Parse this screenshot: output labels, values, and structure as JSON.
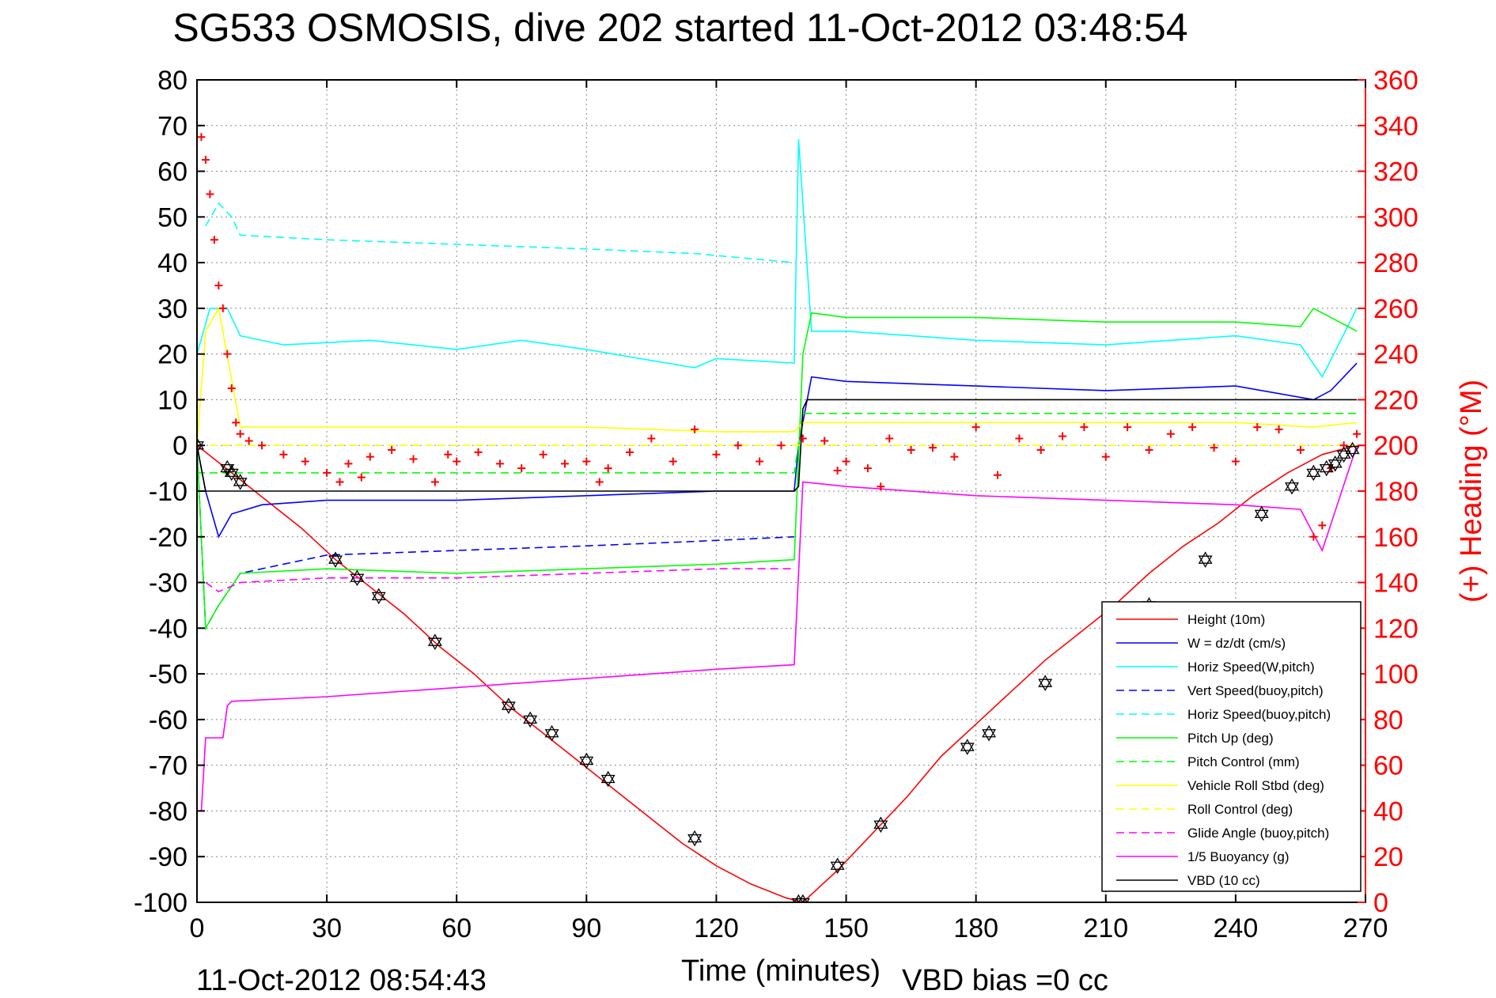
{
  "chart_data": {
    "type": "line",
    "title": "SG533 OSMOSIS, dive 202 started 11-Oct-2012 03:48:54",
    "xlabel": "Time (minutes)",
    "ylabel": "",
    "ylabel_right": "(+) Heading (°M)",
    "footer_left": "11-Oct-2012 08:54:43",
    "footer_right": "VBD bias =0 cc",
    "xlim": [
      0,
      270
    ],
    "ylim": [
      -100,
      80
    ],
    "ylim_right": [
      0,
      360
    ],
    "x_ticks": [
      0,
      30,
      60,
      90,
      120,
      150,
      180,
      210,
      240,
      270
    ],
    "y_ticks": [
      80,
      70,
      60,
      50,
      40,
      30,
      20,
      10,
      0,
      -10,
      -20,
      -30,
      -40,
      -50,
      -60,
      -70,
      -80,
      -90,
      -100
    ],
    "y_ticks_right": [
      360,
      340,
      320,
      300,
      280,
      260,
      240,
      220,
      200,
      180,
      160,
      140,
      120,
      100,
      80,
      60,
      40,
      20,
      0
    ],
    "grid": true,
    "legend_position": "bottom-right",
    "colors": {
      "right_axis": "#ff0000"
    },
    "series": [
      {
        "name": "Height (10m)",
        "color": "#ff0000",
        "style": "solid",
        "x": [
          0,
          8,
          16,
          24,
          32,
          40,
          48,
          56,
          64,
          72,
          80,
          88,
          96,
          104,
          112,
          120,
          128,
          136,
          140,
          148,
          156,
          164,
          172,
          180,
          188,
          196,
          204,
          212,
          220,
          228,
          236,
          244,
          252,
          260,
          268
        ],
        "values": [
          0,
          -6,
          -12,
          -18,
          -25,
          -31,
          -37,
          -44,
          -50,
          -57,
          -63,
          -69,
          -75,
          -81,
          -87,
          -92,
          -96,
          -99,
          -100,
          -93,
          -85,
          -77,
          -68,
          -61,
          -54,
          -47,
          -41,
          -35,
          -28,
          -22,
          -17,
          -11,
          -6,
          -2,
          0
        ]
      },
      {
        "name": "W = dz/dt (cm/s)",
        "color": "#0000ff",
        "style": "solid",
        "x": [
          0,
          2,
          5,
          8,
          15,
          30,
          60,
          90,
          120,
          138,
          139,
          142,
          150,
          180,
          210,
          240,
          258,
          262,
          268
        ],
        "values": [
          0,
          -10,
          -20,
          -15,
          -13,
          -12,
          -12,
          -11,
          -10,
          -10,
          0,
          15,
          14,
          13,
          12,
          13,
          10,
          12,
          18
        ]
      },
      {
        "name": "Horiz Speed(W,pitch)",
        "color": "#00ffff",
        "style": "solid",
        "x": [
          0,
          3,
          7,
          10,
          20,
          40,
          60,
          75,
          90,
          115,
          120,
          138,
          139,
          142,
          150,
          180,
          210,
          240,
          255,
          260,
          268
        ],
        "values": [
          20,
          30,
          30,
          24,
          22,
          23,
          21,
          23,
          21,
          17,
          19,
          18,
          67,
          25,
          25,
          23,
          22,
          24,
          22,
          15,
          30
        ]
      },
      {
        "name": "Vert Speed(buoy,pitch)",
        "color": "#0000ff",
        "style": "dashed",
        "x": [
          0,
          2,
          5,
          10,
          30,
          60,
          90,
          115,
          138
        ],
        "values": [
          0,
          -40,
          -35,
          -28,
          -24,
          -23,
          -22,
          -21,
          -20
        ]
      },
      {
        "name": "Horiz Speed(buoy,pitch)",
        "color": "#00ffff",
        "style": "dashed",
        "x": [
          2,
          5,
          8,
          10,
          30,
          60,
          90,
          115,
          138
        ],
        "values": [
          48,
          53,
          50,
          46,
          45,
          44,
          43,
          42,
          40
        ]
      },
      {
        "name": "Pitch Up (deg)",
        "color": "#00ff00",
        "style": "solid",
        "x": [
          0,
          2,
          5,
          10,
          30,
          60,
          90,
          120,
          138,
          140,
          142,
          150,
          180,
          210,
          240,
          255,
          258,
          268
        ],
        "values": [
          0,
          -40,
          -35,
          -28,
          -27,
          -28,
          -27,
          -26,
          -25,
          20,
          29,
          28,
          28,
          27,
          27,
          26,
          30,
          25
        ]
      },
      {
        "name": "Pitch Control (mm)",
        "color": "#00ff00",
        "style": "dashed",
        "x": [
          0,
          10,
          138,
          140,
          268
        ],
        "values": [
          -6,
          -6,
          -6,
          7,
          7
        ]
      },
      {
        "name": "Vehicle Roll Stbd (deg)",
        "color": "#ffff00",
        "style": "solid",
        "x": [
          0,
          2,
          5,
          10,
          30,
          60,
          90,
          120,
          138,
          140,
          150,
          180,
          210,
          240,
          258,
          268
        ],
        "values": [
          0,
          25,
          30,
          4,
          4,
          4,
          4,
          3,
          3,
          5,
          5,
          5,
          5,
          5,
          4,
          5
        ]
      },
      {
        "name": "Roll Control (deg)",
        "color": "#ffff00",
        "style": "dashed",
        "x": [
          0,
          268
        ],
        "values": [
          0,
          0
        ]
      },
      {
        "name": "Glide Angle (buoy,pitch)",
        "color": "#ff00ff",
        "style": "dashed",
        "x": [
          2,
          5,
          10,
          30,
          60,
          90,
          120,
          138
        ],
        "values": [
          -30,
          -32,
          -30,
          -29,
          -29,
          -28,
          -27,
          -27
        ]
      },
      {
        "name": "1/5 Buoyancy (g)",
        "color": "#ff00ff",
        "style": "solid",
        "x": [
          1,
          2,
          6,
          7,
          8,
          30,
          60,
          90,
          120,
          138,
          140,
          150,
          180,
          210,
          240,
          255,
          260,
          268
        ],
        "values": [
          -80,
          -64,
          -64,
          -57,
          -56,
          -55,
          -53,
          -51,
          -49,
          -48,
          -8,
          -9,
          -11,
          -12,
          -13,
          -14,
          -23,
          0
        ]
      },
      {
        "name": "VBD (10 cc)",
        "color": "#000000",
        "style": "solid",
        "x": [
          0,
          2,
          138,
          139,
          140,
          141,
          268
        ],
        "values": [
          0,
          -10,
          -10,
          -9,
          8,
          10,
          10
        ]
      }
    ],
    "heading_series": {
      "name": "(+) Heading (°M)",
      "color": "#ff0000",
      "marker": "+",
      "axis": "right",
      "x": [
        0,
        1,
        2,
        3,
        4,
        5,
        6,
        7,
        8,
        9,
        10,
        12,
        15,
        20,
        25,
        30,
        33,
        35,
        38,
        40,
        45,
        50,
        55,
        58,
        60,
        65,
        70,
        75,
        80,
        85,
        90,
        93,
        95,
        100,
        105,
        110,
        115,
        120,
        125,
        130,
        135,
        140,
        145,
        148,
        150,
        155,
        158,
        160,
        165,
        170,
        175,
        180,
        185,
        190,
        195,
        200,
        205,
        210,
        215,
        220,
        225,
        230,
        235,
        240,
        245,
        250,
        255,
        258,
        260,
        262,
        265,
        268
      ],
      "values": [
        340,
        335,
        325,
        310,
        290,
        270,
        260,
        240,
        225,
        210,
        205,
        202,
        200,
        196,
        193,
        188,
        184,
        192,
        186,
        195,
        198,
        194,
        184,
        196,
        193,
        197,
        192,
        190,
        196,
        192,
        193,
        184,
        190,
        197,
        203,
        193,
        207,
        196,
        200,
        193,
        200,
        203,
        202,
        189,
        193,
        190,
        182,
        203,
        198,
        199,
        195,
        208,
        187,
        203,
        198,
        204,
        208,
        195,
        208,
        198,
        205,
        208,
        199,
        193,
        208,
        207,
        198,
        160,
        165,
        190,
        200,
        205
      ]
    },
    "markers": {
      "name": "Height marker",
      "color": "#000000",
      "marker": "star-triangle",
      "x": [
        0,
        7,
        8,
        10,
        32,
        37,
        42,
        55,
        72,
        77,
        82,
        90,
        95,
        115,
        139,
        140,
        148,
        158,
        178,
        183,
        196,
        220,
        233,
        246,
        253,
        258,
        261,
        263,
        265,
        267
      ],
      "values": [
        0,
        -5,
        -6,
        -8,
        -25,
        -29,
        -33,
        -43,
        -57,
        -60,
        -63,
        -69,
        -73,
        -86,
        -100,
        -100,
        -92,
        -83,
        -66,
        -63,
        -52,
        -35,
        -25,
        -15,
        -9,
        -6,
        -5,
        -4,
        -2,
        -1
      ]
    }
  }
}
